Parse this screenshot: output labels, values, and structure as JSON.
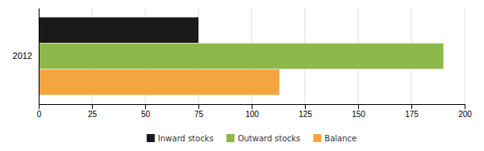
{
  "chart_data": {
    "type": "bar",
    "orientation": "horizontal",
    "categories": [
      "2012"
    ],
    "series": [
      {
        "name": "Inward stocks",
        "color": "#1a1a1a",
        "values": [
          75
        ]
      },
      {
        "name": "Outward stocks",
        "color": "#8db84a",
        "values": [
          190
        ]
      },
      {
        "name": "Balance",
        "color": "#f5a53f",
        "values": [
          113
        ]
      }
    ],
    "xlim": [
      0,
      200
    ],
    "xticks": [
      0,
      25,
      50,
      75,
      100,
      125,
      150,
      175,
      200
    ],
    "grid": true,
    "legend": "bottom"
  }
}
